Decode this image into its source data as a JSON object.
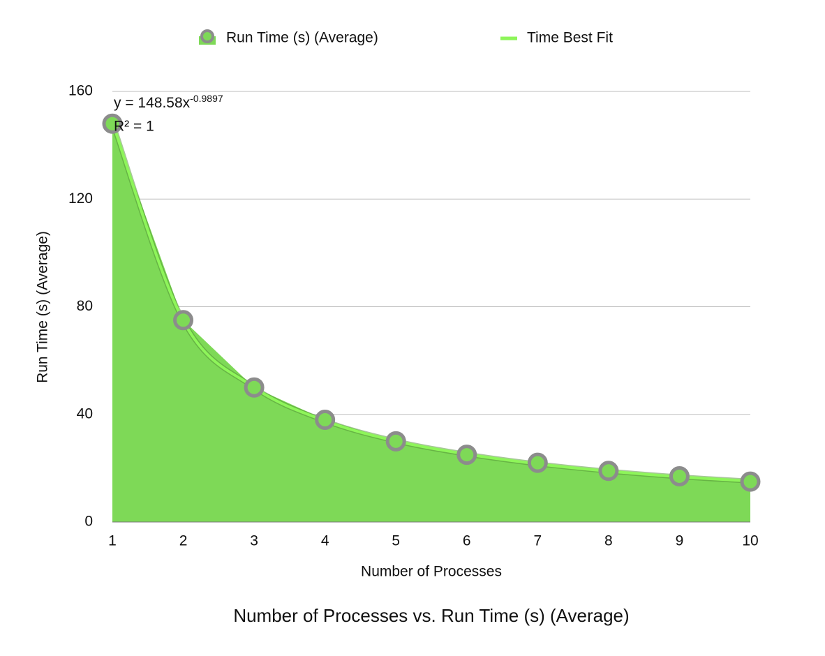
{
  "chart_data": {
    "type": "area",
    "title": "Number of Processes vs. Run Time (s) (Average)",
    "x_label": "Number of Processes",
    "y_label": "Run Time (s) (Average)",
    "x": [
      1,
      2,
      3,
      4,
      5,
      6,
      7,
      8,
      9,
      10
    ],
    "xlim": [
      1,
      10
    ],
    "xticks": [
      1,
      2,
      3,
      4,
      5,
      6,
      7,
      8,
      9,
      10
    ],
    "ylim": [
      0,
      160
    ],
    "yticks": [
      0,
      40,
      80,
      120,
      160
    ],
    "grid": true,
    "series": [
      {
        "name": "Run Time (s) (Average)",
        "color": "#7ed957",
        "marker_color": "#8c8c8c",
        "values": [
          148,
          75,
          50,
          38,
          30,
          25,
          22,
          19,
          17,
          15
        ]
      },
      {
        "name": "Time Best Fit",
        "color": "#8ef55a",
        "values": [
          148.6,
          74.8,
          50.0,
          37.6,
          30.1,
          25.2,
          21.6,
          18.9,
          16.8,
          15.2
        ]
      }
    ],
    "equation": {
      "text": "y = 148.58x",
      "exponent": "-0.9897"
    },
    "r_squared": "R² = 1"
  }
}
